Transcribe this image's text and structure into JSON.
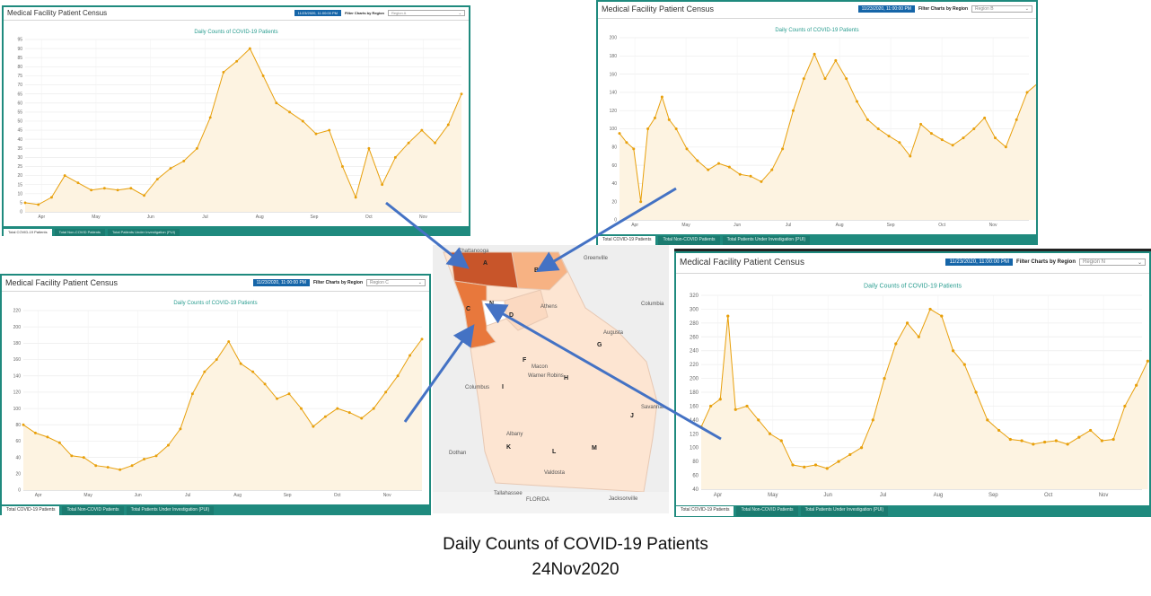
{
  "caption": {
    "line1": "Daily Counts of COVID-19 Patients",
    "line2": "24Nov2020"
  },
  "panels": [
    {
      "title": "Medical Facility Patient Census",
      "date": "11/23/2020, 11:00:00 PM",
      "filter_label": "Filter Charts by Region",
      "region": "Region A",
      "chart_title": "Daily Counts of COVID-19 Patients",
      "tabs": [
        "Total COVID-19 Patients",
        "Total Non-COVID Patients",
        "Total Patients Under Investigation (PUI)"
      ]
    },
    {
      "title": "Medical Facility Patient Census",
      "date": "11/23/2020, 11:00:00 PM",
      "filter_label": "Filter Charts by Region",
      "region": "Region B",
      "chart_title": "Daily Counts of COVID-19 Patients",
      "tabs": [
        "Total COVID-19 Patients",
        "Total Non-COVID Patients",
        "Total Patients Under Investigation (PUI)"
      ]
    },
    {
      "title": "Medical Facility Patient Census",
      "date": "11/23/2020, 11:00:00 PM",
      "filter_label": "Filter Charts by Region",
      "region": "Region C",
      "chart_title": "Daily Counts of COVID-19 Patients",
      "tabs": [
        "Total COVID-19 Patients",
        "Total Non-COVID Patients",
        "Total Patients Under Investigation (PUI)"
      ]
    },
    {
      "title": "Medical Facility Patient Census",
      "date": "11/23/2020, 11:00:00 PM",
      "filter_label": "Filter Charts by Region",
      "region": "Region N",
      "chart_title": "Daily Counts of COVID-19 Patients",
      "tabs": [
        "Total COVID-19 Patients",
        "Total Non-COVID Patients",
        "Total Patients Under Investigation (PUI)"
      ]
    }
  ],
  "colors": {
    "frame": "#1f8a7e",
    "series": "#e8a00c",
    "fill": "#fdf3e1",
    "arrow": "#4472c4",
    "date_badge": "#1565a8"
  },
  "chart_data": [
    {
      "type": "area",
      "title": "Daily Counts of COVID-19 Patients",
      "ylim": [
        0,
        95
      ],
      "yticks": [
        "0",
        "5",
        "10",
        "15",
        "20",
        "25",
        "30",
        "35",
        "40",
        "45",
        "50",
        "55",
        "60",
        "65",
        "70",
        "75",
        "80",
        "85",
        "90",
        "95"
      ],
      "months": [
        "Apr",
        "May",
        "Jun",
        "Jul",
        "Aug",
        "Sep",
        "Oct",
        "Nov"
      ],
      "x": [
        0,
        7,
        14,
        21,
        28,
        35,
        42,
        49,
        56,
        63,
        70,
        77,
        84,
        91,
        98,
        105,
        112,
        119,
        126,
        133,
        140,
        147,
        154,
        161,
        168,
        175,
        182,
        189,
        196,
        203,
        210,
        217,
        224,
        231
      ],
      "values": [
        5,
        4,
        8,
        20,
        16,
        12,
        13,
        12,
        13,
        9,
        18,
        24,
        28,
        35,
        52,
        77,
        83,
        90,
        75,
        60,
        55,
        50,
        43,
        45,
        25,
        8,
        35,
        15,
        30,
        38,
        45,
        38,
        48,
        65
      ]
    },
    {
      "type": "area",
      "title": "Daily Counts of COVID-19 Patients",
      "ylim": [
        0,
        200
      ],
      "yticks": [
        "0",
        "20",
        "40",
        "60",
        "80",
        "100",
        "120",
        "140",
        "160",
        "180",
        "200"
      ],
      "months": [
        "Apr",
        "May",
        "Jun",
        "Jul",
        "Aug",
        "Sep",
        "Oct",
        "Nov"
      ],
      "x": [
        0,
        4,
        8,
        12,
        16,
        20,
        24,
        28,
        32,
        38,
        44,
        50,
        56,
        62,
        68,
        74,
        80,
        86,
        92,
        98,
        104,
        110,
        116,
        122,
        128,
        134,
        140,
        146,
        152,
        158,
        164,
        170,
        176,
        182,
        188,
        194,
        200,
        206,
        212,
        218,
        224,
        230,
        236
      ],
      "values": [
        95,
        85,
        78,
        20,
        100,
        112,
        135,
        110,
        100,
        78,
        65,
        55,
        62,
        58,
        50,
        48,
        42,
        55,
        78,
        120,
        155,
        182,
        155,
        175,
        155,
        130,
        110,
        100,
        92,
        85,
        70,
        105,
        95,
        88,
        82,
        90,
        100,
        112,
        90,
        80,
        110,
        140,
        150
      ]
    },
    {
      "type": "area",
      "title": "Daily Counts of COVID-19 Patients",
      "ylim": [
        0,
        220
      ],
      "yticks": [
        "0",
        "20",
        "40",
        "60",
        "80",
        "100",
        "120",
        "140",
        "160",
        "180",
        "200",
        "220"
      ],
      "months": [
        "Apr",
        "May",
        "Jun",
        "Jul",
        "Aug",
        "Sep",
        "Oct",
        "Nov"
      ],
      "x": [
        0,
        7,
        14,
        21,
        28,
        35,
        42,
        49,
        56,
        63,
        70,
        77,
        84,
        91,
        98,
        105,
        112,
        119,
        126,
        133,
        140,
        147,
        154,
        161,
        168,
        175,
        182,
        189,
        196,
        203,
        210,
        217,
        224,
        231
      ],
      "values": [
        80,
        70,
        65,
        58,
        42,
        40,
        30,
        28,
        25,
        30,
        38,
        42,
        55,
        75,
        118,
        145,
        160,
        182,
        155,
        145,
        130,
        112,
        118,
        100,
        78,
        90,
        100,
        95,
        88,
        100,
        120,
        140,
        165,
        185
      ]
    },
    {
      "type": "area",
      "title": "Daily Counts of COVID-19 Patients",
      "ylim": [
        40,
        320
      ],
      "yticks": [
        "40",
        "60",
        "80",
        "100",
        "120",
        "140",
        "160",
        "180",
        "200",
        "220",
        "240",
        "260",
        "280",
        "300",
        "320"
      ],
      "months": [
        "Apr",
        "May",
        "Jun",
        "Jul",
        "Aug",
        "Sep",
        "Oct",
        "Nov"
      ],
      "x": [
        0,
        5,
        10,
        14,
        18,
        24,
        30,
        36,
        42,
        48,
        54,
        60,
        66,
        72,
        78,
        84,
        90,
        96,
        102,
        108,
        114,
        120,
        126,
        132,
        138,
        144,
        150,
        156,
        162,
        168,
        174,
        180,
        186,
        192,
        198,
        204,
        210,
        216,
        222,
        228,
        234
      ],
      "values": [
        130,
        160,
        170,
        290,
        155,
        160,
        140,
        120,
        110,
        75,
        72,
        75,
        70,
        80,
        90,
        100,
        140,
        200,
        250,
        280,
        260,
        300,
        290,
        240,
        220,
        180,
        140,
        125,
        112,
        110,
        105,
        108,
        110,
        105,
        115,
        125,
        110,
        112,
        160,
        190,
        225
      ]
    }
  ],
  "map": {
    "labels": [
      "A",
      "B",
      "C",
      "N",
      "D",
      "F",
      "G",
      "H",
      "I",
      "J",
      "K",
      "L",
      "M"
    ],
    "places": [
      "Chattanooga",
      "Greenville",
      "Athens",
      "Columbia",
      "Augusta",
      "Macon",
      "Warner Robins",
      "Columbus",
      "Savannah",
      "Albany",
      "Dothan",
      "Valdosta",
      "Tallahassee",
      "FLORIDA",
      "Jacksonville"
    ]
  }
}
